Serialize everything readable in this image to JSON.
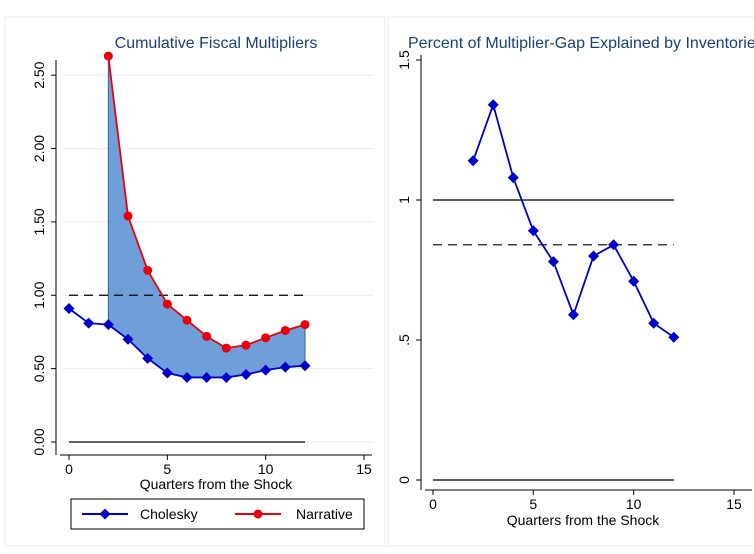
{
  "chart_data": [
    {
      "type": "line",
      "title": "Cumulative Fiscal Multipliers",
      "xlabel": "Quarters from the Shock",
      "ylabel": "",
      "xlim": [
        0,
        15
      ],
      "ylim": [
        0,
        2.6
      ],
      "xticks": [
        "0",
        "5",
        "10",
        "15"
      ],
      "yticks": [
        "0.00",
        "0.50",
        "1.00",
        "1.50",
        "2.00",
        "2.50"
      ],
      "legend_position": "bottom",
      "grid": true,
      "series": [
        {
          "name": "Cholesky",
          "color": "#0000cc",
          "marker": "diamond",
          "x": [
            0,
            1,
            2,
            3,
            4,
            5,
            6,
            7,
            8,
            9,
            10,
            11,
            12
          ],
          "values": [
            0.91,
            0.81,
            0.8,
            0.7,
            0.57,
            0.47,
            0.44,
            0.44,
            0.44,
            0.46,
            0.49,
            0.51,
            0.52
          ]
        },
        {
          "name": "Narrative",
          "color": "#e8000b",
          "marker": "circle",
          "x": [
            2,
            3,
            4,
            5,
            6,
            7,
            8,
            9,
            10,
            11,
            12
          ],
          "values": [
            2.63,
            1.54,
            1.17,
            0.94,
            0.83,
            0.72,
            0.64,
            0.66,
            0.71,
            0.76,
            0.8
          ]
        }
      ],
      "reference_lines": [
        {
          "y": 1.0,
          "style": "dashed",
          "x": [
            0,
            12
          ]
        },
        {
          "y": 0.0,
          "style": "solid",
          "x": [
            0,
            12
          ]
        }
      ],
      "shaded_between": {
        "series": [
          "Cholesky",
          "Narrative"
        ],
        "x": [
          2,
          12
        ],
        "color": "#6f9fd8"
      }
    },
    {
      "type": "line",
      "title": "Percent of Multiplier-Gap Explained by Inventories",
      "xlabel": "Quarters from the Shock",
      "ylabel": "",
      "xlim": [
        0,
        15
      ],
      "ylim": [
        0,
        1.5
      ],
      "xticks": [
        "0",
        "5",
        "10",
        "15"
      ],
      "yticks": [
        "0",
        ".5",
        "1",
        "1.5"
      ],
      "grid": false,
      "series": [
        {
          "color": "#0000cc",
          "marker": "diamond",
          "x": [
            2,
            3,
            4,
            5,
            6,
            7,
            8,
            9,
            10,
            11,
            12
          ],
          "values": [
            1.14,
            1.34,
            1.08,
            0.89,
            0.78,
            0.59,
            0.8,
            0.84,
            0.71,
            0.56,
            0.51
          ]
        }
      ],
      "reference_lines": [
        {
          "y": 1.0,
          "style": "solid",
          "x": [
            0,
            12
          ]
        },
        {
          "y": 0.84,
          "style": "dashed",
          "x": [
            0,
            12
          ]
        },
        {
          "y": 0.0,
          "style": "solid",
          "x": [
            0,
            12
          ]
        }
      ]
    }
  ],
  "colors": {
    "panel_border": "#e4e8ec",
    "grid": "#e6ebef",
    "title": "#1b3f73",
    "shade": "#6f9fd8",
    "shade_edge": "#2f5f9f"
  }
}
